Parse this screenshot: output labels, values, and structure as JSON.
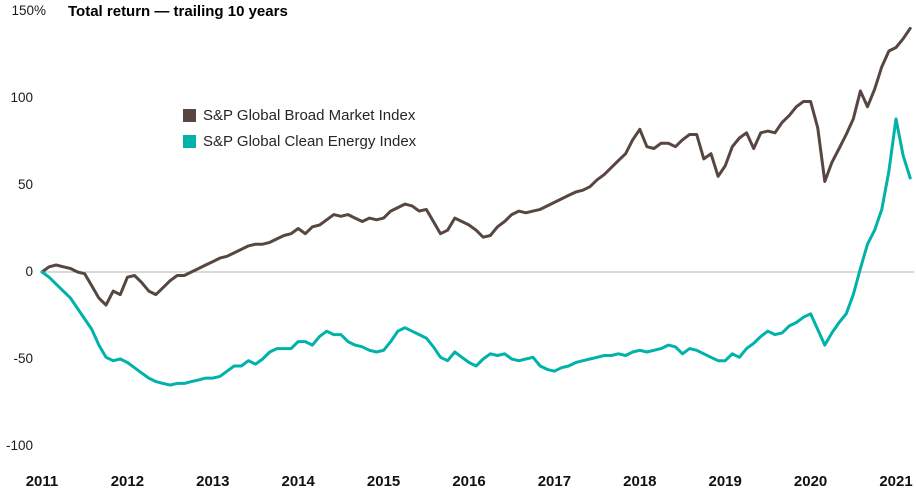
{
  "title": "Total return — trailing 10 years",
  "legend": [
    {
      "label": "S&P Global Broad Market Index",
      "color": "#574740"
    },
    {
      "label": "S&P Global Clean Energy Index",
      "color": "#00B2A9"
    }
  ],
  "chart_data": {
    "type": "line",
    "title": "Total return — trailing 10 years",
    "x_start_year": 2011,
    "points_per_month": 1,
    "x_axis": {
      "tick_labels": [
        "2011",
        "2012",
        "2013",
        "2014",
        "2015",
        "2016",
        "2017",
        "2018",
        "2019",
        "2020",
        "2021"
      ]
    },
    "y_axis": {
      "unit": "%",
      "range": [
        -100,
        150
      ],
      "tick_values": [
        150,
        100,
        50,
        0,
        -50,
        -100
      ],
      "tick_labels": [
        "150%",
        "100",
        "50",
        "0",
        "-50",
        "-100"
      ]
    },
    "grid": "zero-line-only",
    "zero_line_color": "#b3b3b3",
    "legend_position": "inside-upper-left",
    "series": [
      {
        "name": "S&P Global Broad Market Index",
        "color": "#574740",
        "values": [
          0,
          3,
          4,
          3,
          2,
          0,
          -1,
          -8,
          -15,
          -19,
          -11,
          -13,
          -3,
          -2,
          -6,
          -11,
          -13,
          -9,
          -5,
          -2,
          -2,
          0,
          2,
          4,
          6,
          8,
          9,
          11,
          13,
          15,
          16,
          16,
          17,
          19,
          21,
          22,
          25,
          22,
          26,
          27,
          30,
          33,
          32,
          33,
          31,
          29,
          31,
          30,
          31,
          35,
          37,
          39,
          38,
          35,
          36,
          29,
          22,
          24,
          31,
          29,
          27,
          24,
          20,
          21,
          26,
          29,
          33,
          35,
          34,
          35,
          36,
          38,
          40,
          42,
          44,
          46,
          47,
          49,
          53,
          56,
          60,
          64,
          68,
          76,
          82,
          72,
          71,
          74,
          74,
          72,
          76,
          79,
          79,
          65,
          68,
          55,
          61,
          72,
          77,
          80,
          71,
          80,
          81,
          80,
          86,
          90,
          95,
          98,
          98,
          83,
          52,
          63,
          71,
          79,
          88,
          104,
          95,
          105,
          118,
          127,
          129,
          134,
          140
        ]
      },
      {
        "name": "S&P Global Clean Energy Index",
        "color": "#00B2A9",
        "values": [
          0,
          -3,
          -7,
          -11,
          -15,
          -21,
          -27,
          -33,
          -42,
          -49,
          -51,
          -50,
          -52,
          -55,
          -58,
          -61,
          -63,
          -64,
          -65,
          -64,
          -64,
          -63,
          -62,
          -61,
          -61,
          -60,
          -57,
          -54,
          -54,
          -51,
          -53,
          -50,
          -46,
          -44,
          -44,
          -44,
          -40,
          -40,
          -42,
          -37,
          -34,
          -36,
          -36,
          -40,
          -42,
          -43,
          -45,
          -46,
          -45,
          -40,
          -34,
          -32,
          -34,
          -36,
          -38,
          -43,
          -49,
          -51,
          -46,
          -49,
          -52,
          -54,
          -50,
          -47,
          -48,
          -47,
          -50,
          -51,
          -50,
          -49,
          -54,
          -56,
          -57,
          -55,
          -54,
          -52,
          -51,
          -50,
          -49,
          -48,
          -48,
          -47,
          -48,
          -46,
          -45,
          -46,
          -45,
          -44,
          -42,
          -43,
          -47,
          -44,
          -45,
          -47,
          -49,
          -51,
          -51,
          -47,
          -49,
          -44,
          -41,
          -37,
          -34,
          -36,
          -35,
          -31,
          -29,
          -26,
          -24,
          -33,
          -42,
          -35,
          -29,
          -24,
          -13,
          2,
          16,
          24,
          36,
          58,
          88,
          67,
          54
        ]
      }
    ]
  }
}
